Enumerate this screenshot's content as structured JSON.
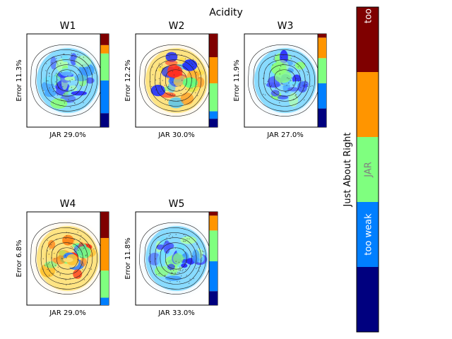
{
  "figure": {
    "title": "Acidity"
  },
  "chart_data": [
    {
      "type": "heatmap",
      "title": "W1",
      "xlabel": "JAR 29.0%",
      "ylabel": "Error 11.3%",
      "profile": [
        0.15,
        0.35,
        0.29,
        0.09,
        0.12
      ],
      "mood": "cool"
    },
    {
      "type": "heatmap",
      "title": "W2",
      "xlabel": "JAR 30.0%",
      "ylabel": "Error 12.2%",
      "profile": [
        0.09,
        0.08,
        0.3,
        0.28,
        0.25
      ],
      "mood": "warm"
    },
    {
      "type": "heatmap",
      "title": "W3",
      "xlabel": "JAR 27.0%",
      "ylabel": "Error 11.9%",
      "profile": [
        0.2,
        0.27,
        0.27,
        0.22,
        0.04
      ],
      "mood": "cool"
    },
    {
      "type": "heatmap",
      "title": "W4",
      "xlabel": "JAR 29.0%",
      "ylabel": "Error 6.8%",
      "profile": [
        0.0,
        0.08,
        0.29,
        0.35,
        0.28
      ],
      "mood": "hot"
    },
    {
      "type": "heatmap",
      "title": "W5",
      "xlabel": "JAR 33.0%",
      "ylabel": "Error 11.8%",
      "profile": [
        0.15,
        0.32,
        0.33,
        0.16,
        0.04
      ],
      "mood": "cool"
    }
  ],
  "colorbar": {
    "label": "Just About Right",
    "segments": [
      {
        "label": "",
        "color": "#00007f"
      },
      {
        "label": "too weak",
        "color": "#007fff"
      },
      {
        "label": "JAR",
        "color": "#7fff7f"
      },
      {
        "label": "",
        "color": "#ff9500"
      },
      {
        "label": "too",
        "color": "#7f0000"
      }
    ]
  },
  "colors": {
    "strip": [
      "#00007f",
      "#007fff",
      "#7fff7f",
      "#ff9500",
      "#7f0000"
    ]
  }
}
